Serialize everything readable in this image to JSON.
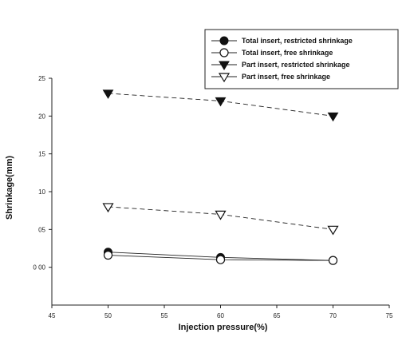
{
  "chart_data": {
    "type": "line",
    "title": "",
    "xlabel": "Injection pressure(%)",
    "ylabel": "Shrinkage(mm)",
    "xlim": [
      45,
      75
    ],
    "ylim": [
      -0.5,
      2.5
    ],
    "x_ticks": [
      45,
      50,
      55,
      60,
      65,
      70,
      75
    ],
    "x_tick_labels": [
      "45",
      "50",
      "55",
      "60",
      "65",
      "70",
      "75"
    ],
    "y_ticks": [
      0.0,
      0.5,
      1.0,
      1.5,
      2.0,
      2.5
    ],
    "y_tick_labels": [
      "0 00",
      "05",
      "10",
      "15",
      "20",
      "25"
    ],
    "grid": false,
    "legend_position": "top-right",
    "series": [
      {
        "name": "Total insert, restricted shrinkage",
        "marker": "filled-circle",
        "line": "solid",
        "x": [
          50,
          60,
          70
        ],
        "y": [
          0.2,
          0.13,
          0.09
        ]
      },
      {
        "name": "Total insert, free shrinkage",
        "marker": "open-circle",
        "line": "solid",
        "x": [
          50,
          60,
          70
        ],
        "y": [
          0.16,
          0.1,
          0.09
        ]
      },
      {
        "name": "Part insert, restricted shrinkage",
        "marker": "filled-triangle-down",
        "line": "dashed",
        "x": [
          50,
          60,
          70
        ],
        "y": [
          2.3,
          2.2,
          2.0
        ]
      },
      {
        "name": "Part insert, free shrinkage",
        "marker": "open-triangle-down",
        "line": "dashed",
        "x": [
          50,
          60,
          70
        ],
        "y": [
          0.8,
          0.7,
          0.5
        ]
      }
    ]
  }
}
